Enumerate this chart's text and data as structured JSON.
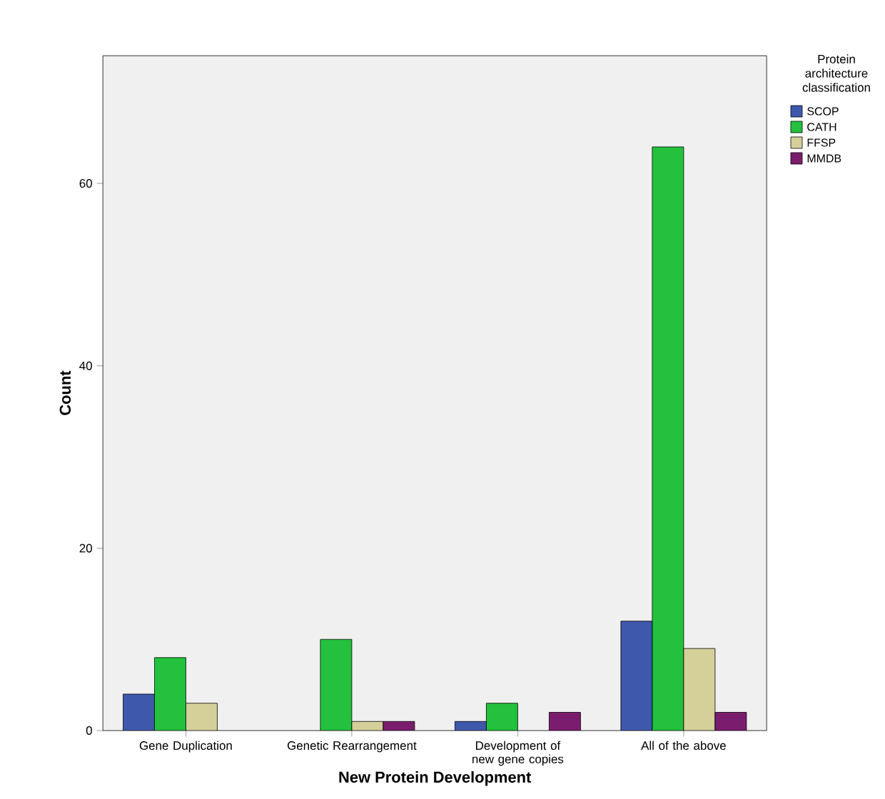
{
  "chart_data": {
    "type": "bar",
    "xlabel": "New Protein Development",
    "ylabel": "Count",
    "legend_title": "Protein architecture classification",
    "categories": [
      "Gene Duplication",
      "Genetic Rearrangement",
      "Development of new gene copies",
      "All of the above"
    ],
    "series": [
      {
        "name": "SCOP",
        "color": "#3e58ac",
        "values": [
          4,
          null,
          1,
          12
        ]
      },
      {
        "name": "CATH",
        "color": "#23c13d",
        "values": [
          8,
          10,
          3,
          64
        ]
      },
      {
        "name": "FFSP",
        "color": "#d5d09a",
        "values": [
          3,
          1,
          null,
          9
        ]
      },
      {
        "name": "MMDB",
        "color": "#7b1d6e",
        "values": [
          null,
          1,
          2,
          2
        ]
      }
    ],
    "ylim": [
      0,
      74
    ],
    "yticks": [
      0,
      20,
      40,
      60
    ],
    "grid": false,
    "legend": "right"
  }
}
